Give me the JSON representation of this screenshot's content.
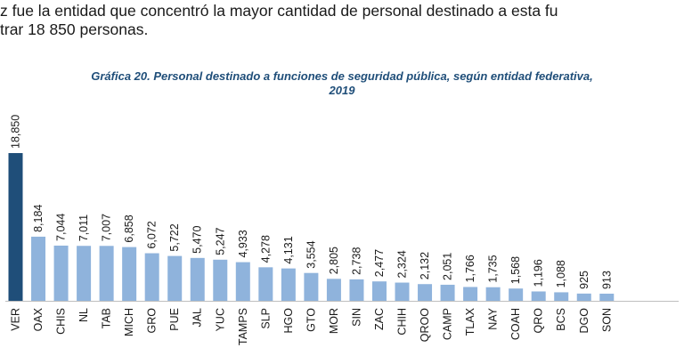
{
  "intro_lines": [
    "z fue la entidad que concentró la mayor cantidad de personal destinado a esta fu",
    "trar 18 850 personas."
  ],
  "chart_data": {
    "type": "bar",
    "title_line1": "Gráfica 20. Personal destinado a funciones de seguridad pública, según entidad federativa,",
    "title_line2": "2019",
    "categories": [
      "VER",
      "OAX",
      "CHIS",
      "NL",
      "TAB",
      "MICH",
      "GRO",
      "PUE",
      "JAL",
      "YUC",
      "TAMPS",
      "SLP",
      "HGO",
      "GTO",
      "MOR",
      "SIN",
      "ZAC",
      "CHIH",
      "QROO",
      "CAMP",
      "TLAX",
      "NAY",
      "COAH",
      "QRO",
      "BCS",
      "DGO",
      "SON"
    ],
    "values": [
      18850,
      8184,
      7044,
      7011,
      7007,
      6858,
      6072,
      5722,
      5470,
      5247,
      4933,
      4278,
      4131,
      3554,
      2805,
      2738,
      2477,
      2324,
      2132,
      2051,
      1766,
      1735,
      1568,
      1196,
      1088,
      925,
      913
    ],
    "value_labels": [
      "18,850",
      "8,184",
      "7,044",
      "7,011",
      "7,007",
      "6,858",
      "6,072",
      "5,722",
      "5,470",
      "5,247",
      "4,933",
      "4,278",
      "4,131",
      "3,554",
      "2,805",
      "2,738",
      "2,477",
      "2,324",
      "2,132",
      "2,051",
      "1,766",
      "1,735",
      "1,568",
      "1,196",
      "1,088",
      "925",
      "913"
    ],
    "highlight_color": "#1f4e79",
    "bar_color": "#8fb3dc",
    "ylim": [
      0,
      18850
    ],
    "grid": false,
    "legend": "none"
  }
}
